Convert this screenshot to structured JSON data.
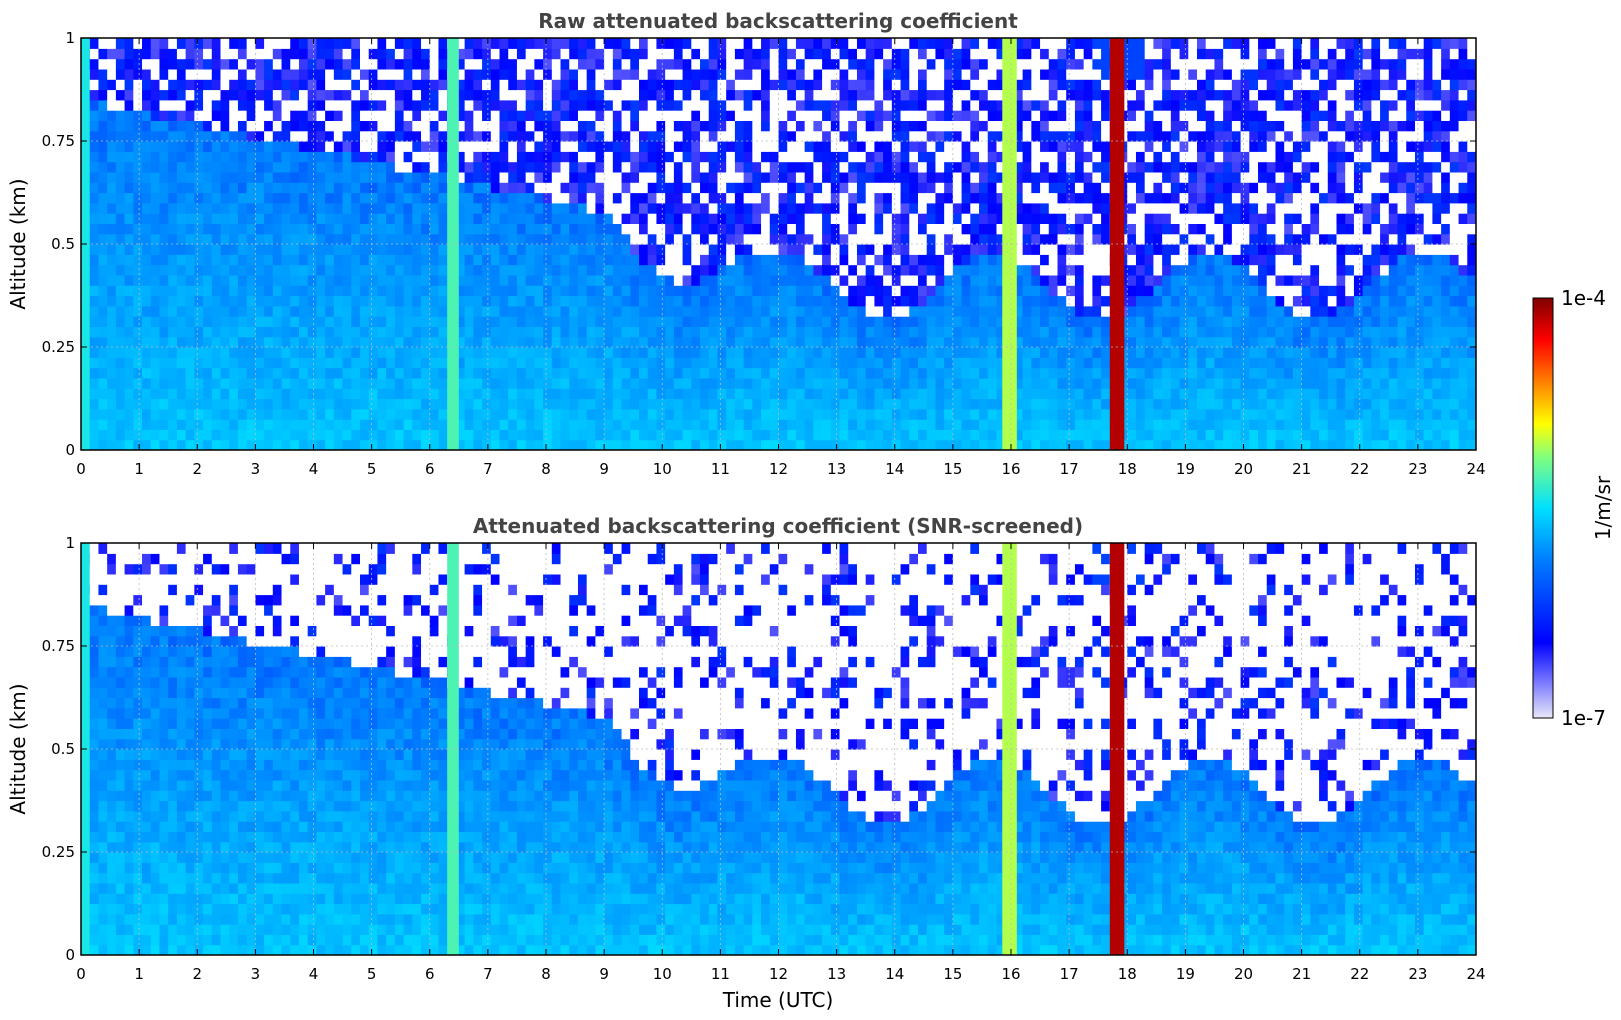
{
  "chart_data": [
    {
      "type": "heatmap",
      "title": "Raw attenuated backscattering coefficient",
      "xlabel": "",
      "ylabel": "Altitude (km)",
      "xlim": [
        0,
        24
      ],
      "ylim": [
        0,
        1
      ],
      "x_ticks": [
        "0",
        "1",
        "2",
        "3",
        "4",
        "5",
        "6",
        "7",
        "8",
        "9",
        "10",
        "11",
        "12",
        "13",
        "14",
        "15",
        "16",
        "17",
        "18",
        "19",
        "20",
        "21",
        "22",
        "23",
        "24"
      ],
      "y_ticks": [
        "0",
        "0.25",
        "0.5",
        "0.75",
        "1"
      ],
      "grid": true,
      "screened": false,
      "features": [
        {
          "x_start": 15.85,
          "x_end": 16.1,
          "level": 0.55
        },
        {
          "x_start": 17.7,
          "x_end": 17.95,
          "level": 0.95
        },
        {
          "x_start": 6.3,
          "x_end": 6.5,
          "level": 0.45
        },
        {
          "x_start": 0.0,
          "x_end": 0.15,
          "level": 0.4
        }
      ]
    },
    {
      "type": "heatmap",
      "title": "Attenuated backscattering coefficient (SNR-screened)",
      "xlabel": "Time (UTC)",
      "ylabel": "Altitude (km)",
      "xlim": [
        0,
        24
      ],
      "ylim": [
        0,
        1
      ],
      "x_ticks": [
        "0",
        "1",
        "2",
        "3",
        "4",
        "5",
        "6",
        "7",
        "8",
        "9",
        "10",
        "11",
        "12",
        "13",
        "14",
        "15",
        "16",
        "17",
        "18",
        "19",
        "20",
        "21",
        "22",
        "23",
        "24"
      ],
      "y_ticks": [
        "0",
        "0.25",
        "0.5",
        "0.75",
        "1"
      ],
      "grid": true,
      "screened": true,
      "features": [
        {
          "x_start": 15.85,
          "x_end": 16.1,
          "level": 0.55
        },
        {
          "x_start": 17.7,
          "x_end": 17.95,
          "level": 0.95
        },
        {
          "x_start": 6.3,
          "x_end": 6.5,
          "level": 0.45
        },
        {
          "x_start": 0.0,
          "x_end": 0.15,
          "level": 0.4
        }
      ]
    }
  ],
  "colorbar": {
    "label": "1/m/sr",
    "max_label": "1e-4",
    "min_label": "1e-7",
    "scale": "log",
    "colormap": [
      "#e8e8f8",
      "#0000ff",
      "#0080ff",
      "#00e0ff",
      "#80ff80",
      "#ffff00",
      "#ff8000",
      "#ff0000",
      "#800000"
    ]
  }
}
